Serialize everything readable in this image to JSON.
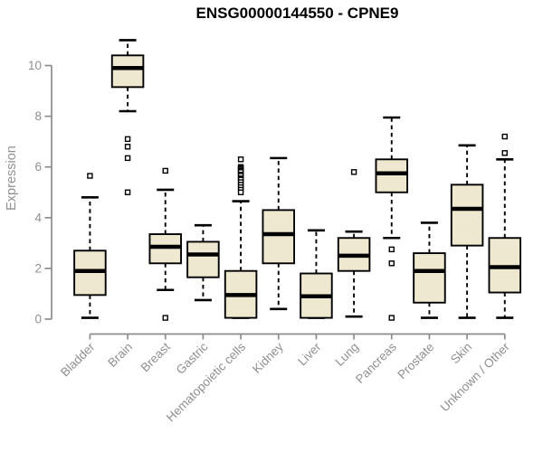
{
  "chart_data": {
    "type": "boxplot",
    "title": "ENSG00000144550 - CPNE9",
    "ylabel": "Expression",
    "xlabel": "",
    "ylim": [
      0,
      11.2
    ],
    "yticks": [
      0,
      2,
      4,
      6,
      8,
      10
    ],
    "grid": false,
    "legend": "none",
    "styles": {
      "box_fill": "#EDE8CF",
      "box_stroke": "#000000",
      "median_color": "#000000",
      "whisker_color": "#000000",
      "outlier_fill": "#FFFFFF",
      "axis_color": "#8C8C8C",
      "tick_label_color": "#8F8F8F",
      "title_color": "#000000",
      "background": "#FFFFFF"
    },
    "categories": [
      "Bladder",
      "Brain",
      "Breast",
      "Gastric",
      "Hematopoietic cells",
      "Kidney",
      "Liver",
      "Lung",
      "Pancreas",
      "Prostate",
      "Skin",
      "Unknown / Other"
    ],
    "boxes": [
      {
        "category": "Bladder",
        "whisker_low": 0.05,
        "q1": 0.95,
        "median": 1.9,
        "q3": 2.7,
        "whisker_high": 4.8,
        "outliers": [
          5.65
        ]
      },
      {
        "category": "Brain",
        "whisker_low": 8.2,
        "q1": 9.15,
        "median": 9.9,
        "q3": 10.4,
        "whisker_high": 11.0,
        "outliers": [
          7.1,
          6.8,
          6.35,
          5.0
        ]
      },
      {
        "category": "Breast",
        "whisker_low": 1.15,
        "q1": 2.2,
        "median": 2.85,
        "q3": 3.35,
        "whisker_high": 5.1,
        "outliers": [
          5.85,
          0.05
        ]
      },
      {
        "category": "Gastric",
        "whisker_low": 0.75,
        "q1": 1.65,
        "median": 2.55,
        "q3": 3.05,
        "whisker_high": 3.7,
        "outliers": []
      },
      {
        "category": "Hematopoietic cells",
        "whisker_low": 0.05,
        "q1": 0.05,
        "median": 0.95,
        "q3": 1.9,
        "whisker_high": 4.65,
        "outliers": [
          6.3,
          6.0,
          5.95,
          5.9,
          5.85,
          5.8,
          5.7,
          5.65,
          5.55,
          5.5,
          5.4,
          5.3,
          5.2,
          5.1,
          5.0
        ]
      },
      {
        "category": "Kidney",
        "whisker_low": 0.4,
        "q1": 2.2,
        "median": 3.35,
        "q3": 4.3,
        "whisker_high": 6.35,
        "outliers": []
      },
      {
        "category": "Liver",
        "whisker_low": 0.05,
        "q1": 0.05,
        "median": 0.9,
        "q3": 1.8,
        "whisker_high": 3.5,
        "outliers": []
      },
      {
        "category": "Lung",
        "whisker_low": 0.1,
        "q1": 1.9,
        "median": 2.5,
        "q3": 3.2,
        "whisker_high": 3.45,
        "outliers": [
          5.8
        ]
      },
      {
        "category": "Pancreas",
        "whisker_low": 3.2,
        "q1": 5.0,
        "median": 5.75,
        "q3": 6.3,
        "whisker_high": 7.95,
        "outliers": [
          2.75,
          2.2,
          0.05
        ]
      },
      {
        "category": "Prostate",
        "whisker_low": 0.05,
        "q1": 0.65,
        "median": 1.9,
        "q3": 2.6,
        "whisker_high": 3.8,
        "outliers": []
      },
      {
        "category": "Skin",
        "whisker_low": 0.05,
        "q1": 2.9,
        "median": 4.35,
        "q3": 5.3,
        "whisker_high": 6.85,
        "outliers": []
      },
      {
        "category": "Unknown / Other",
        "whisker_low": 0.05,
        "q1": 1.05,
        "median": 2.05,
        "q3": 3.2,
        "whisker_high": 6.3,
        "outliers": [
          7.2,
          6.55
        ]
      }
    ]
  }
}
